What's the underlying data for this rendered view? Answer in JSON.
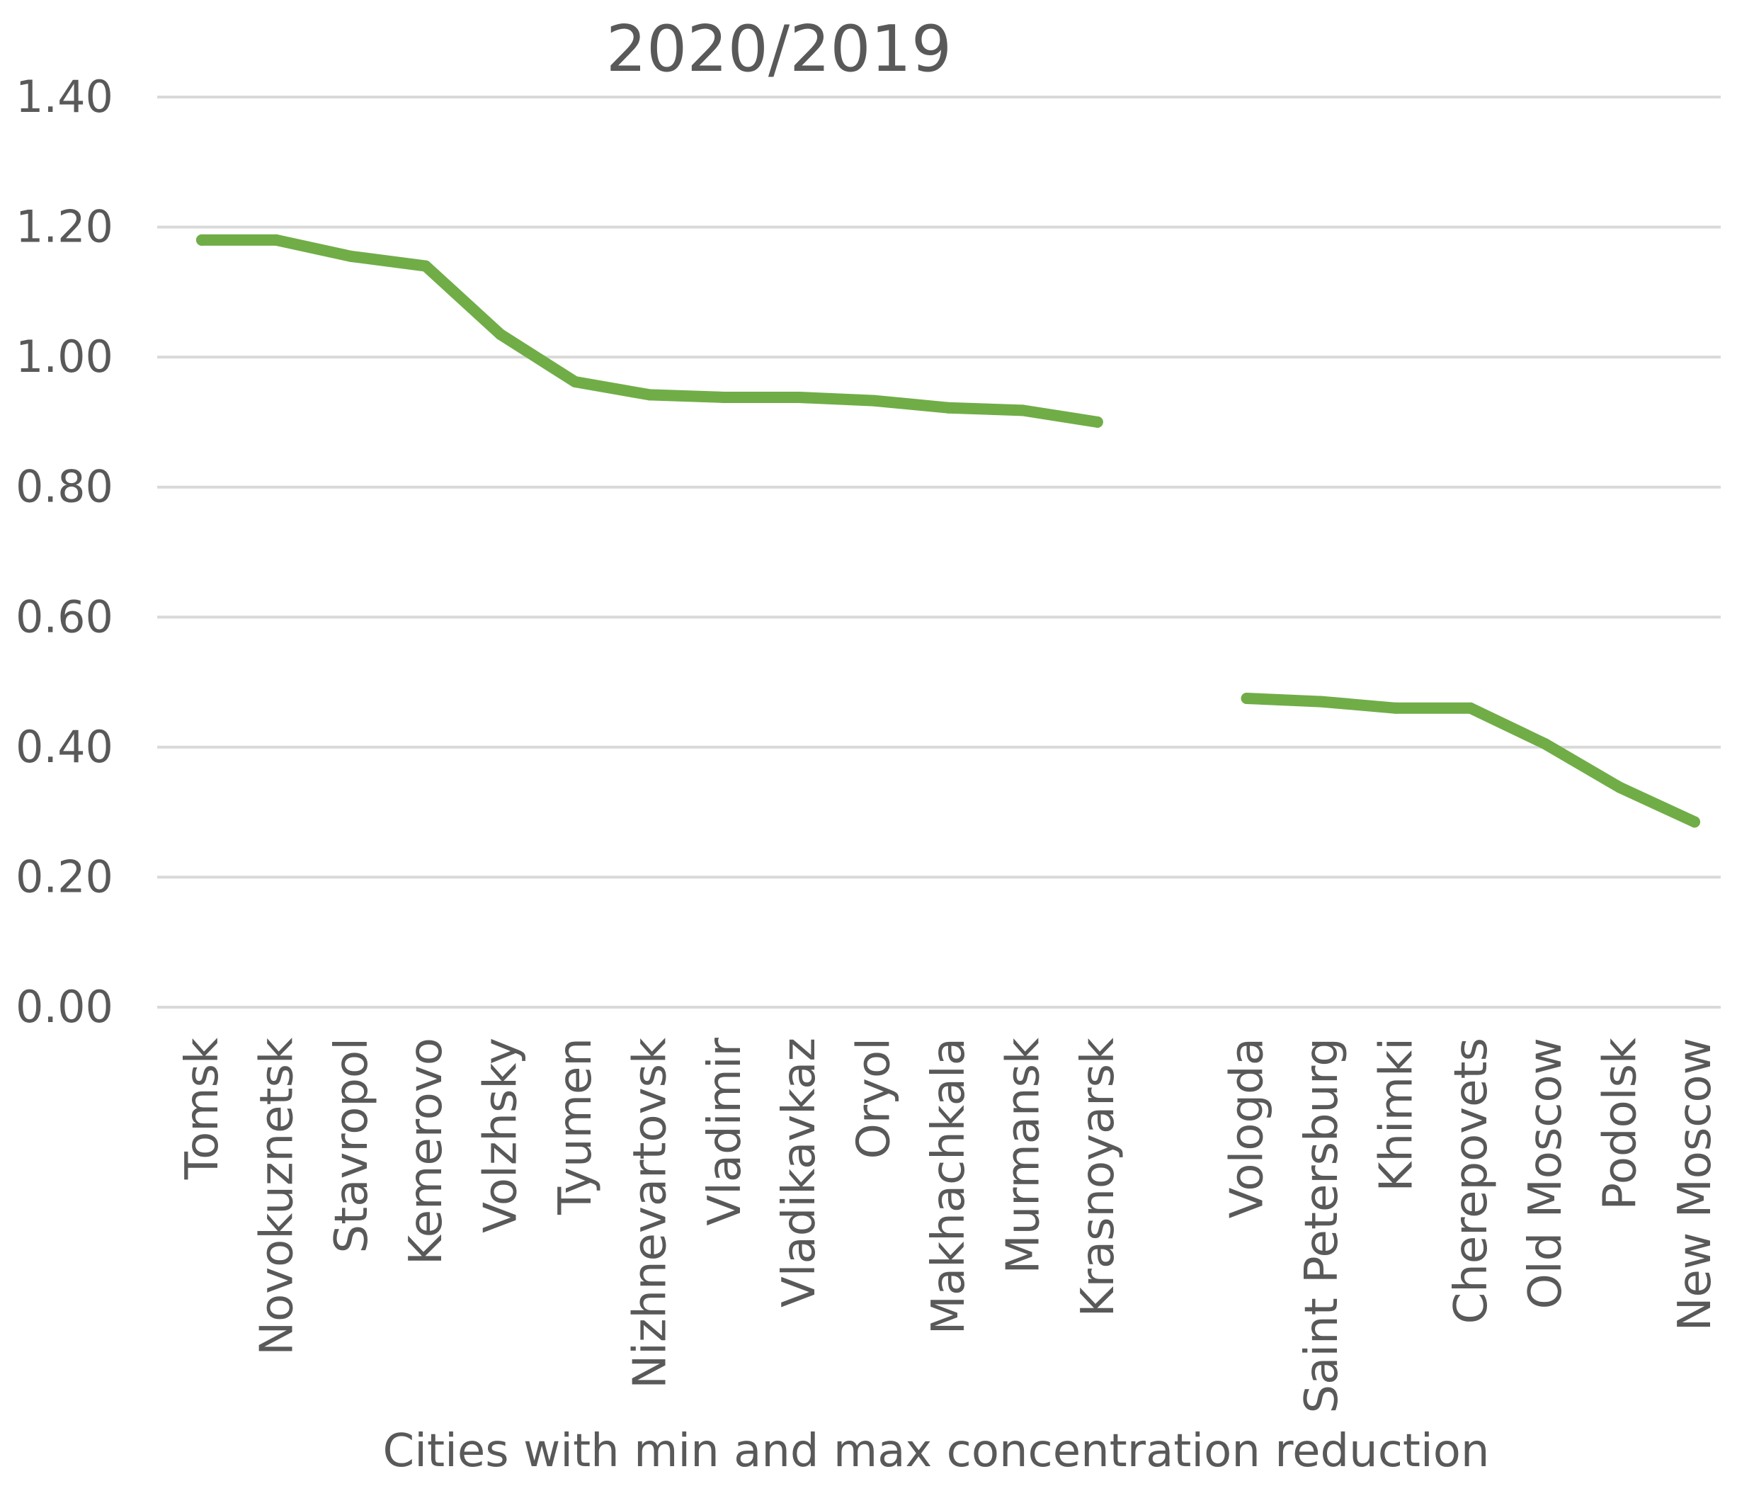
{
  "chart_data": {
    "type": "line",
    "title": "2020/2019",
    "xlabel": "Cities with min and max concentration reduction",
    "ylabel": "",
    "ylim": [
      0,
      1.4
    ],
    "yticks": [
      "0.00",
      "0.20",
      "0.40",
      "0.60",
      "0.80",
      "1.00",
      "1.20",
      "1.40"
    ],
    "grid": true,
    "legend": "none",
    "categories": [
      "Tomsk",
      "Novokuznetsk",
      "Stavropol",
      "Kemerovo",
      "Volzhsky",
      "Tyumen",
      "Nizhnevartovsk",
      "Vladimir",
      "Vladikavkaz",
      "Oryol",
      "Makhachkala",
      "Murmansk",
      "Krasnoyarsk",
      "",
      "Vologda",
      "Saint Petersburg",
      "Khimki",
      "Cherepovets",
      "Old Moscow",
      "Podolsk",
      "New Moscow"
    ],
    "series": [
      {
        "name": "2020/2019",
        "color": "#70ad47",
        "values": [
          1.18,
          1.18,
          1.155,
          1.14,
          1.035,
          0.962,
          0.942,
          0.938,
          0.938,
          0.933,
          0.922,
          0.918,
          0.9,
          null,
          0.475,
          0.47,
          0.46,
          0.46,
          0.405,
          0.338,
          0.285
        ]
      }
    ]
  }
}
